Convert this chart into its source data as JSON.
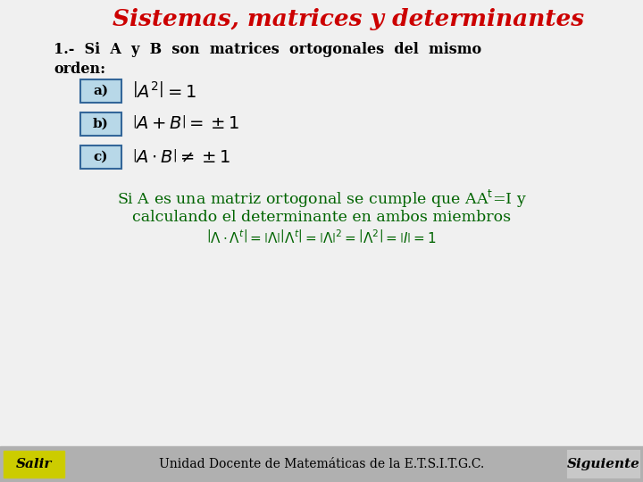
{
  "title": "Sistemas, matrices y determinantes",
  "title_color": "#cc0000",
  "bg_color": "#f0f0f0",
  "line1": "1.-  Si  A  y  B  son  matrices  ortogonales  del  mismo",
  "line2_prefix": "orden:",
  "box_a_label": "a)",
  "box_b_label": "b)",
  "box_c_label": "c)",
  "green_color": "#006400",
  "black_color": "#000000",
  "footer_left": "Salir",
  "footer_center": "Unidad Docente de Matemáticas de la E.T.S.I.T.G.C.",
  "footer_right": "Siguiente",
  "footer_bg": "#b0b0b0",
  "footer_salir_bg": "#cccc00",
  "footer_siguiente_bg": "#c8c8c8",
  "box_fill": "#b8d8e8",
  "box_border": "#336699",
  "content_bg": "#f0f0f0"
}
